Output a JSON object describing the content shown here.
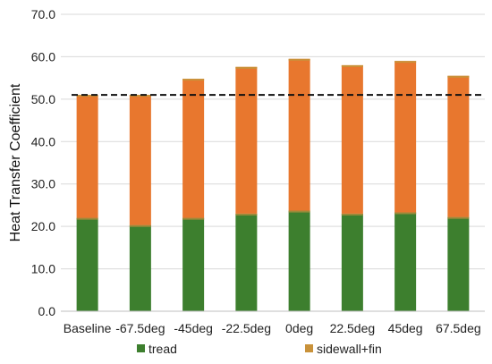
{
  "chart_data": {
    "type": "bar",
    "stacked": true,
    "categories": [
      "Baseline",
      "-67.5deg",
      "-45deg",
      "-22.5deg",
      "0deg",
      "22.5deg",
      "45deg",
      "67.5deg"
    ],
    "series": [
      {
        "name": "tread",
        "color": "#3d7f2e",
        "values": [
          22.0,
          20.3,
          22.0,
          23.0,
          23.7,
          23.0,
          23.3,
          22.2
        ]
      },
      {
        "name": "sidewall+fin",
        "color": "#e8772e",
        "values": [
          29.0,
          30.7,
          32.8,
          34.6,
          35.8,
          35.0,
          35.7,
          33.3
        ]
      }
    ],
    "sidewall_fin_legend_color": "#c9923a",
    "ylabel": "Heat Transfer Coefficient",
    "xlabel": "",
    "ylim": [
      0,
      70
    ],
    "yticks": [
      "0.0",
      "10.0",
      "20.0",
      "30.0",
      "40.0",
      "50.0",
      "60.0",
      "70.0"
    ],
    "reference_line": {
      "value": 51.0,
      "style": "dashed",
      "color": "#111111"
    },
    "grid": "horizontal",
    "legend_position": "bottom"
  }
}
